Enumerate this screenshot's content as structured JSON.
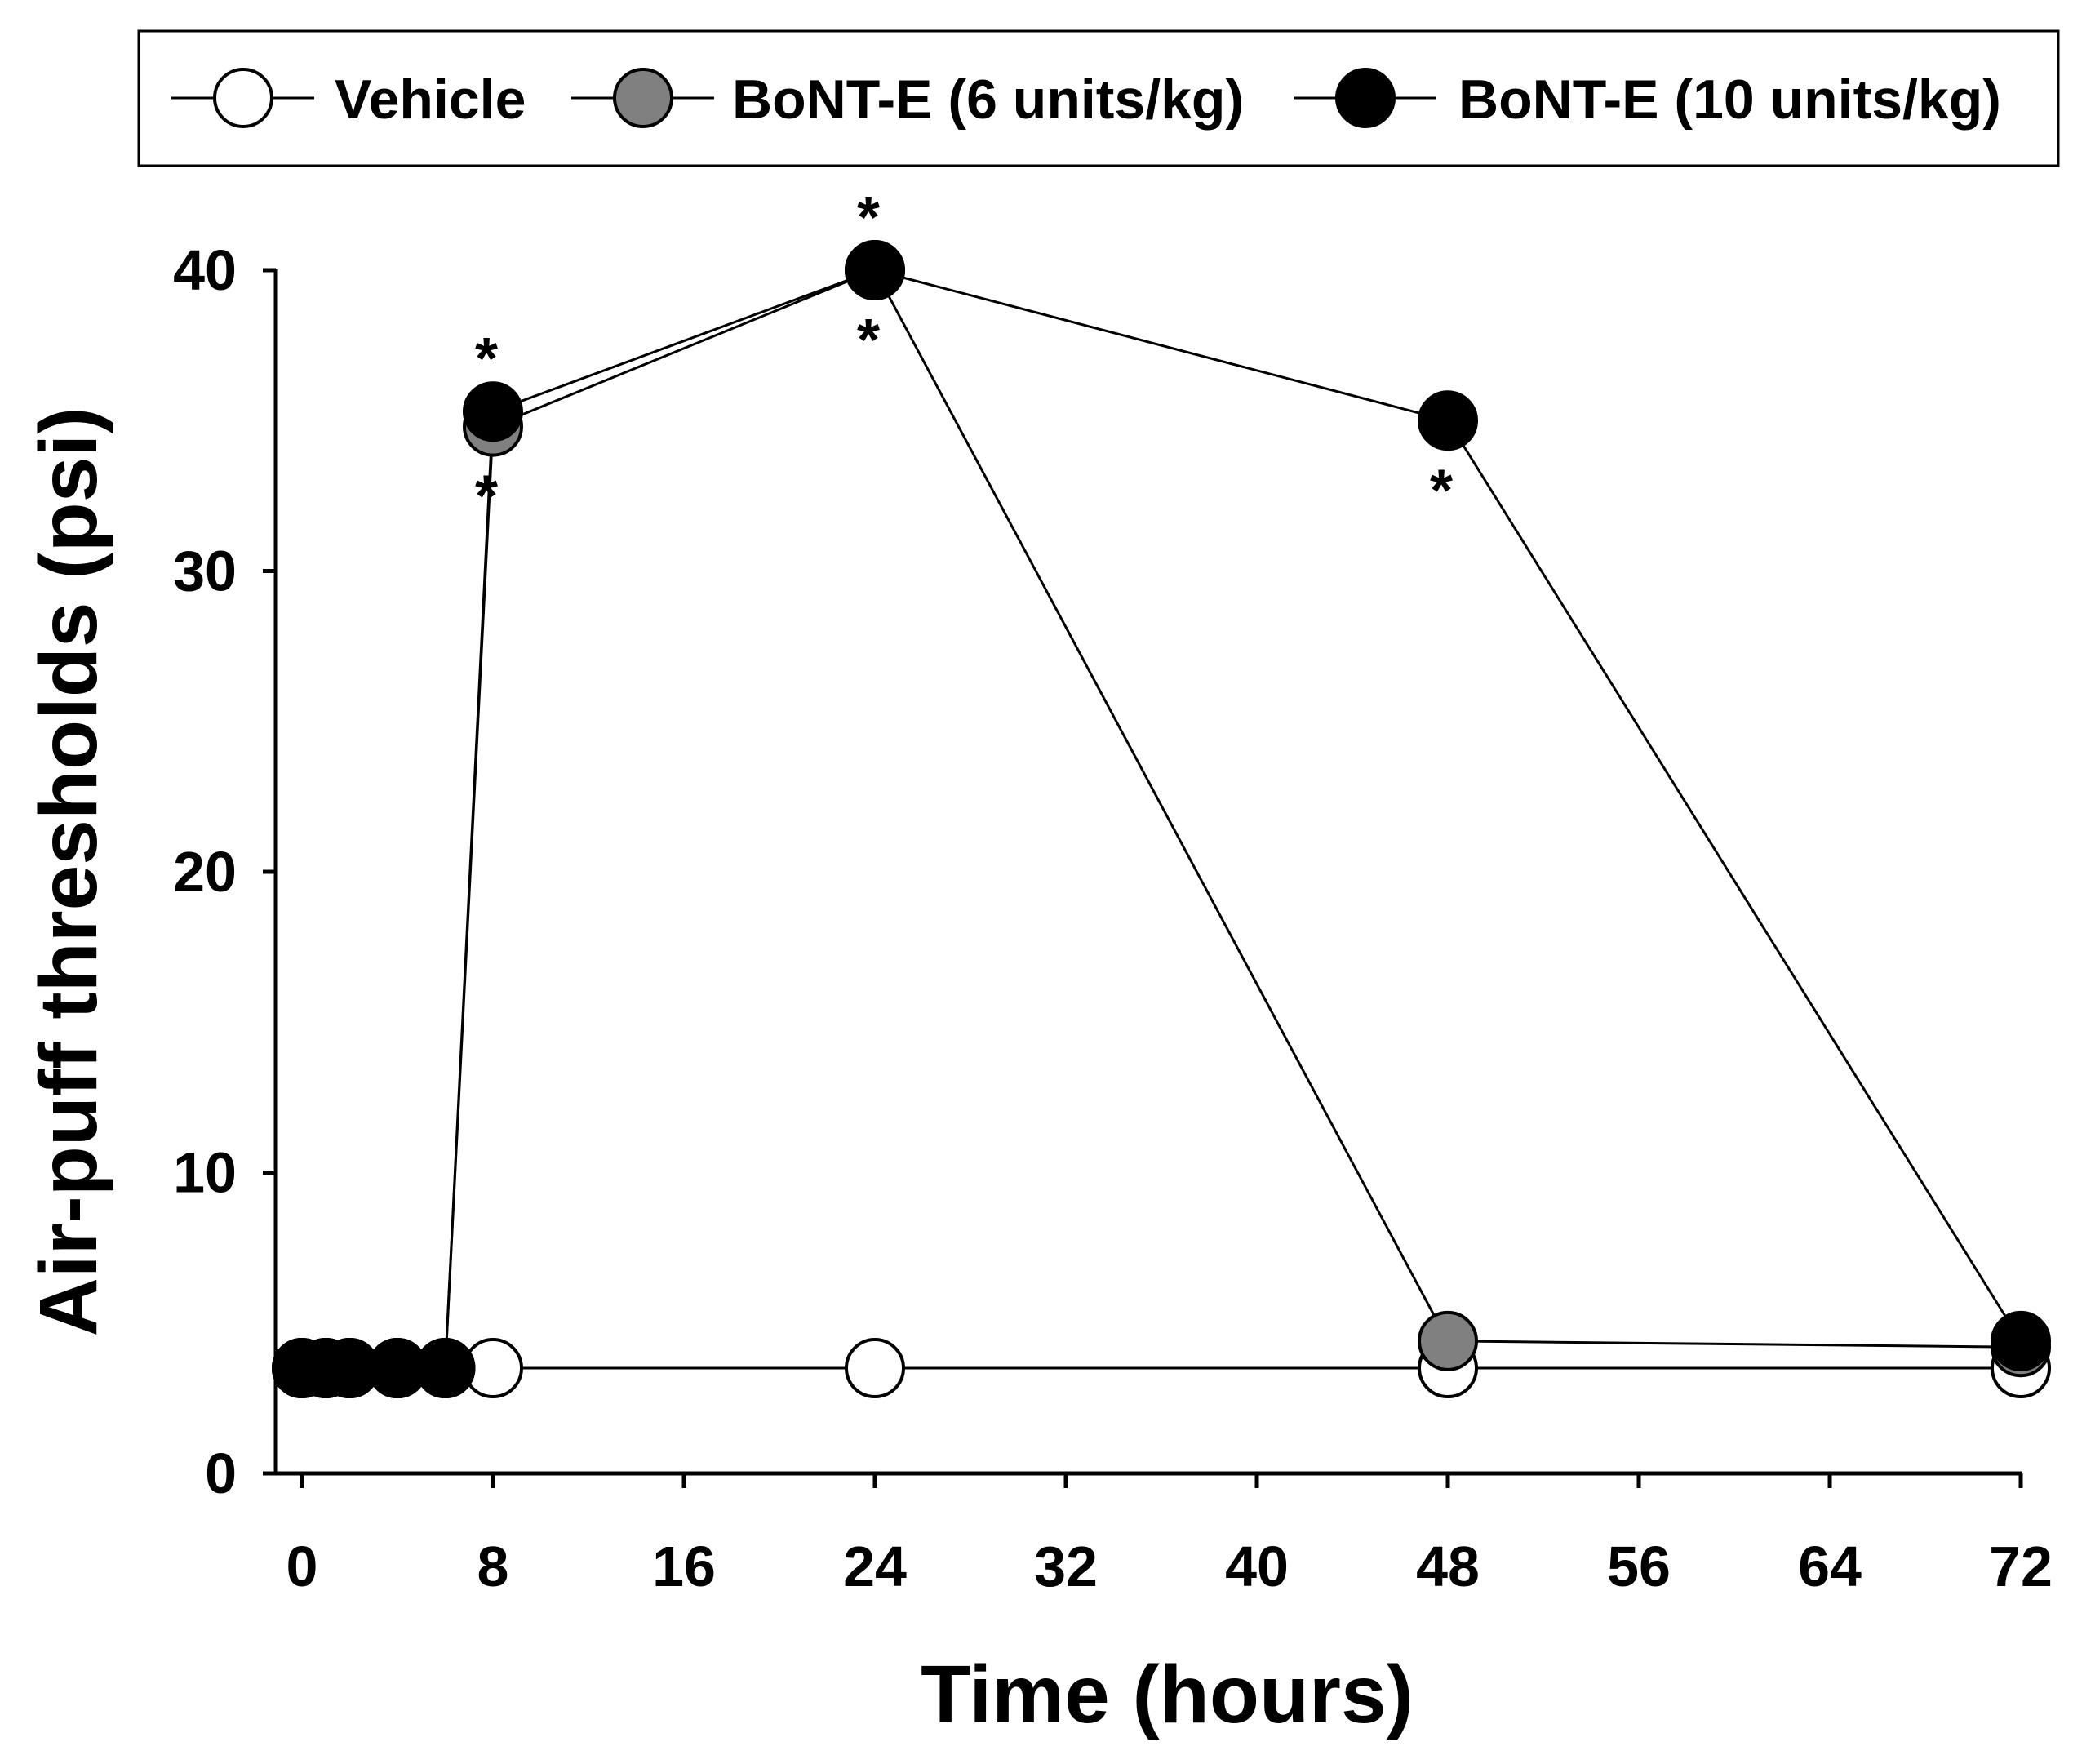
{
  "chart_data": {
    "type": "line",
    "title": "",
    "xlabel": "Time (hours)",
    "ylabel": "Air-puff thresholds (psi)",
    "xlim": [
      0,
      72
    ],
    "ylim": [
      0,
      40
    ],
    "xticks": [
      0,
      8,
      16,
      24,
      32,
      40,
      48,
      56,
      64,
      72
    ],
    "yticks": [
      0,
      10,
      20,
      30,
      40
    ],
    "grid": false,
    "legend_position": "top, boxed, horizontal",
    "series": [
      {
        "name": "Vehicle",
        "color": "#ffffff",
        "x": [
          0,
          1,
          2,
          4,
          6,
          8,
          24,
          48,
          72
        ],
        "y": [
          3.5,
          3.5,
          3.5,
          3.5,
          3.5,
          3.5,
          3.5,
          3.5,
          3.5
        ]
      },
      {
        "name": "BoNT-E (6 units/kg)",
        "color": "#808080",
        "x": [
          0,
          1,
          2,
          4,
          6,
          8,
          24,
          48,
          72
        ],
        "y": [
          3.5,
          3.5,
          3.5,
          3.5,
          3.5,
          34.8,
          40,
          4.4,
          4.2
        ]
      },
      {
        "name": "BoNT-E (10 units/kg)",
        "color": "#000000",
        "x": [
          0,
          1,
          2,
          4,
          6,
          8,
          24,
          48,
          72
        ],
        "y": [
          3.5,
          3.5,
          3.5,
          3.5,
          3.5,
          35.3,
          40,
          35,
          4.4
        ]
      }
    ],
    "annotations": [
      {
        "text": "*",
        "x": 8,
        "y": 35.3,
        "position": "above"
      },
      {
        "text": "*",
        "x": 8,
        "y": 34.8,
        "position": "below"
      },
      {
        "text": "*",
        "x": 24,
        "y": 40,
        "position": "above"
      },
      {
        "text": "*",
        "x": 24,
        "y": 40,
        "position": "below"
      },
      {
        "text": "*",
        "x": 48,
        "y": 35,
        "position": "below"
      }
    ]
  }
}
